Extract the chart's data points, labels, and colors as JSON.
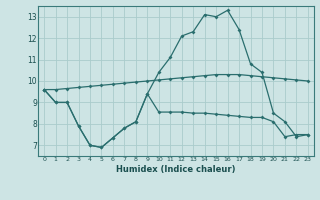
{
  "xlabel": "Humidex (Indice chaleur)",
  "bg_color": "#cde4e4",
  "grid_color": "#aacccc",
  "line_color": "#2a6e6e",
  "xlim": [
    -0.5,
    23.5
  ],
  "ylim": [
    6.5,
    13.5
  ],
  "yticks": [
    7,
    8,
    9,
    10,
    11,
    12,
    13
  ],
  "xticks": [
    0,
    1,
    2,
    3,
    4,
    5,
    6,
    7,
    8,
    9,
    10,
    11,
    12,
    13,
    14,
    15,
    16,
    17,
    18,
    19,
    20,
    21,
    22,
    23
  ],
  "line1_x": [
    0,
    1,
    2,
    3,
    4,
    5,
    6,
    7,
    8,
    9,
    10,
    11,
    12,
    13,
    14,
    15,
    16,
    17,
    18,
    19,
    20,
    21,
    22,
    23
  ],
  "line1_y": [
    9.6,
    9.6,
    9.65,
    9.7,
    9.75,
    9.8,
    9.85,
    9.9,
    9.95,
    10.0,
    10.05,
    10.1,
    10.15,
    10.2,
    10.25,
    10.3,
    10.3,
    10.3,
    10.25,
    10.2,
    10.15,
    10.1,
    10.05,
    10.0
  ],
  "line2_x": [
    0,
    1,
    2,
    3,
    4,
    5,
    6,
    7,
    8,
    9,
    10,
    11,
    12,
    13,
    14,
    15,
    16,
    17,
    18,
    19,
    20,
    21,
    22,
    23
  ],
  "line2_y": [
    9.6,
    9.0,
    9.0,
    7.9,
    7.0,
    6.9,
    7.35,
    7.8,
    8.1,
    9.4,
    8.55,
    8.55,
    8.55,
    8.5,
    8.5,
    8.45,
    8.4,
    8.35,
    8.3,
    8.3,
    8.1,
    7.4,
    7.5,
    7.5
  ],
  "line3_x": [
    0,
    1,
    2,
    3,
    4,
    5,
    6,
    7,
    8,
    9,
    10,
    11,
    12,
    13,
    14,
    15,
    16,
    17,
    18,
    19,
    20,
    21,
    22,
    23
  ],
  "line3_y": [
    9.6,
    9.0,
    9.0,
    7.9,
    7.0,
    6.9,
    7.35,
    7.8,
    8.1,
    9.4,
    10.4,
    11.1,
    12.1,
    12.3,
    13.1,
    13.0,
    13.3,
    12.4,
    10.8,
    10.4,
    8.5,
    8.1,
    7.4,
    7.5
  ]
}
